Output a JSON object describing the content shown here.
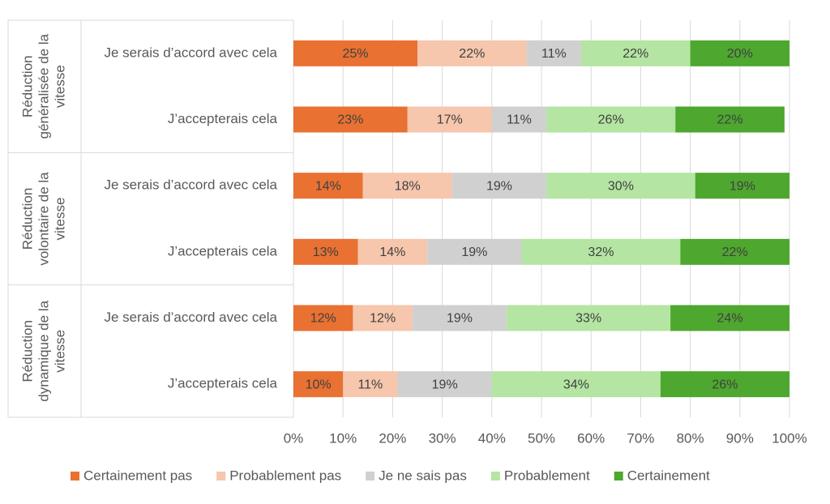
{
  "chart_data": {
    "type": "stacked_bar_horizontal",
    "groups": [
      {
        "label": [
          "Réduction",
          "généralisée de la",
          "vitesse"
        ],
        "categories": [
          "Je serais d’accord avec cela",
          "J’accepterais cela"
        ]
      },
      {
        "label": [
          "Réduction",
          "volontaire de la",
          "vitesse"
        ],
        "categories": [
          "Je serais d’accord avec cela",
          "J’accepterais cela"
        ]
      },
      {
        "label": [
          "Réduction",
          "dynamique de la",
          "vitesse"
        ],
        "categories": [
          "Je serais d’accord avec cela",
          "J’accepterais cela"
        ]
      }
    ],
    "series": [
      {
        "name": "Certainement pas",
        "color": "#e97132",
        "values": [
          25,
          23,
          14,
          13,
          12,
          10
        ],
        "value_labels": [
          "25%",
          "23%",
          "14%",
          "13%",
          "12%",
          "10%"
        ]
      },
      {
        "name": "Probablement pas",
        "color": "#f6c6ad",
        "values": [
          22,
          17,
          18,
          14,
          12,
          11
        ],
        "value_labels": [
          "22%",
          "17%",
          "18%",
          "14%",
          "12%",
          "11%"
        ]
      },
      {
        "name": "Je ne sais pas",
        "color": "#d0d0d0",
        "values": [
          11,
          11,
          19,
          19,
          19,
          19
        ],
        "value_labels": [
          "11%",
          "11%",
          "19%",
          "19%",
          "19%",
          "19%"
        ]
      },
      {
        "name": "Probablement",
        "color": "#b4e5a2",
        "values": [
          22,
          26,
          30,
          32,
          33,
          34
        ],
        "value_labels": [
          "22%",
          "26%",
          "30%",
          "32%",
          "33%",
          "34%"
        ]
      },
      {
        "name": "Certainement",
        "color": "#4ea72e",
        "values": [
          20,
          22,
          19,
          22,
          24,
          26
        ],
        "value_labels": [
          "20%",
          "22%",
          "19%",
          "22%",
          "24%",
          "26%"
        ]
      }
    ],
    "xlim": [
      0,
      100
    ],
    "xticks": [
      {
        "value": 0,
        "label": "0%"
      },
      {
        "value": 10,
        "label": "10%"
      },
      {
        "value": 20,
        "label": "20%"
      },
      {
        "value": 30,
        "label": "30%"
      },
      {
        "value": 40,
        "label": "40%"
      },
      {
        "value": 50,
        "label": "50%"
      },
      {
        "value": 60,
        "label": "60%"
      },
      {
        "value": 70,
        "label": "70%"
      },
      {
        "value": 80,
        "label": "80%"
      },
      {
        "value": 90,
        "label": "90%"
      },
      {
        "value": 100,
        "label": "100%"
      }
    ],
    "grid": true,
    "legend": "bottom"
  }
}
